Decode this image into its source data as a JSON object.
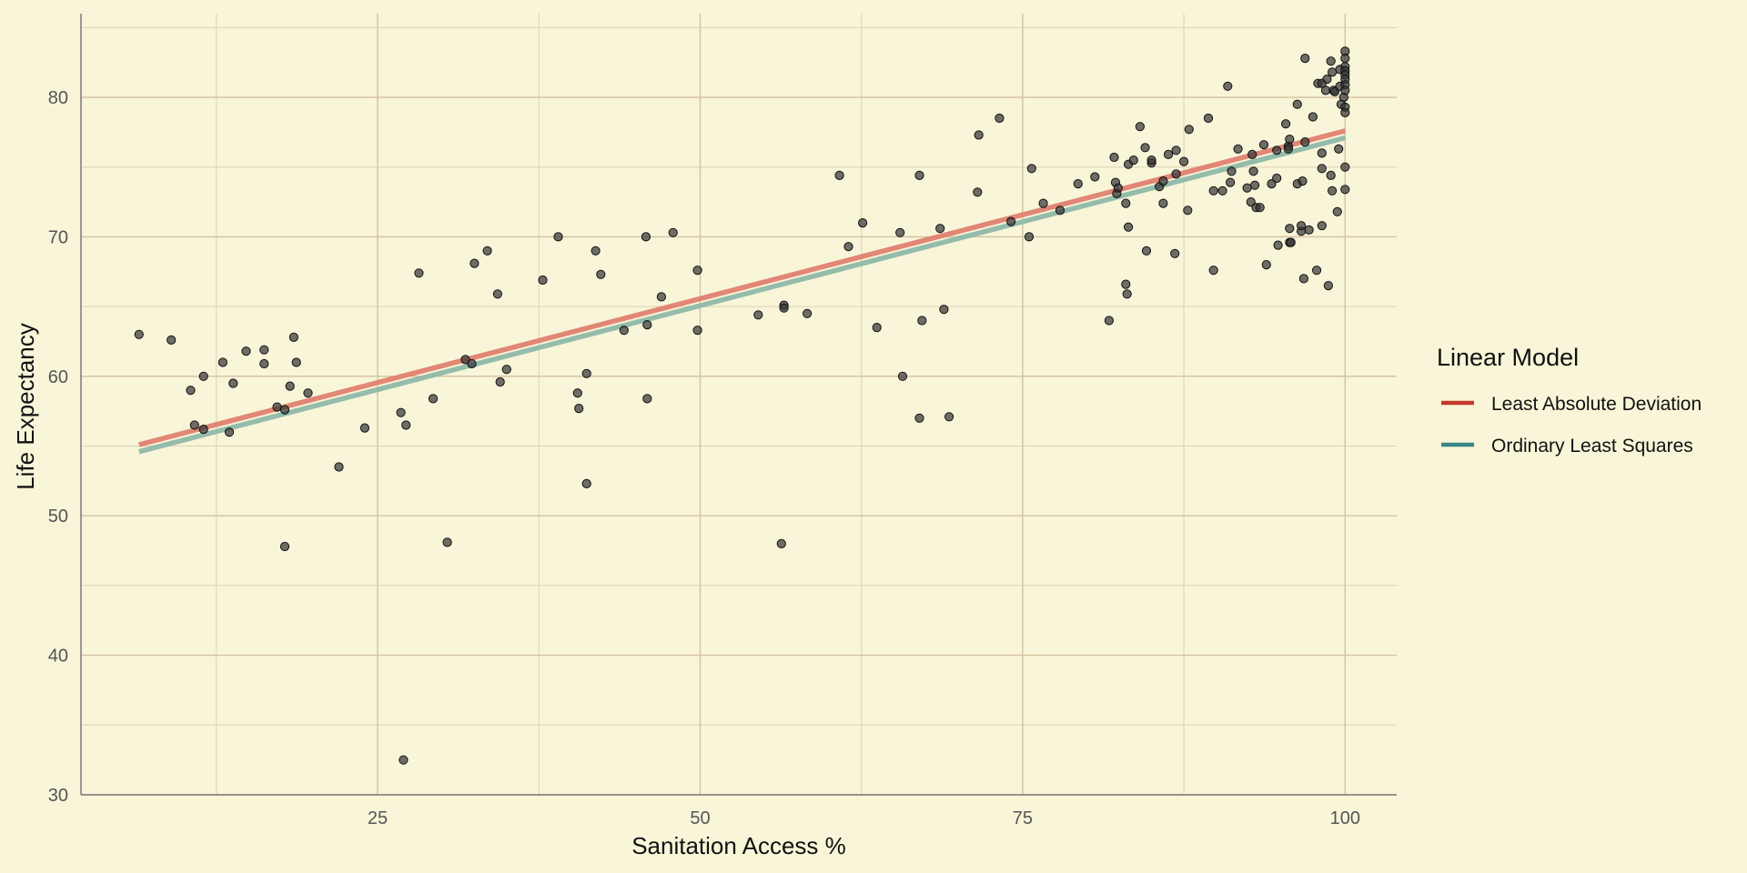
{
  "chart_data": {
    "type": "scatter",
    "xlabel": "Sanitation Access %",
    "ylabel": "Life Expectancy",
    "xlim": [
      2,
      104
    ],
    "ylim": [
      30,
      86
    ],
    "x_ticks": [
      25,
      50,
      75,
      100
    ],
    "y_ticks": [
      30,
      40,
      50,
      60,
      70,
      80
    ],
    "grid": true,
    "legend": {
      "title": "Linear Model",
      "position": "right",
      "entries": [
        {
          "label": "Least Absolute Deviation",
          "color": "#c0392b"
        },
        {
          "label": "Ordinary Least Squares",
          "color": "#3a8585"
        }
      ]
    },
    "fit_lines": [
      {
        "name": "Least Absolute Deviation",
        "color": "#e08070",
        "x": [
          6.5,
          100
        ],
        "y": [
          55.1,
          77.6
        ]
      },
      {
        "name": "Ordinary Least Squares",
        "color": "#8fb8a8",
        "x": [
          6.5,
          100
        ],
        "y": [
          54.6,
          77.1
        ]
      }
    ],
    "point_color": "#333333",
    "points": [
      [
        6.5,
        63.0
      ],
      [
        9,
        62.6
      ],
      [
        10.5,
        59.0
      ],
      [
        10.8,
        56.5
      ],
      [
        11.5,
        60.0
      ],
      [
        11.5,
        56.2
      ],
      [
        13,
        61.0
      ],
      [
        13.5,
        56.0
      ],
      [
        13.8,
        59.5
      ],
      [
        14.8,
        61.8
      ],
      [
        16.2,
        61.9
      ],
      [
        16.2,
        60.9
      ],
      [
        17.2,
        57.8
      ],
      [
        17.8,
        47.8
      ],
      [
        17.8,
        57.6
      ],
      [
        18.2,
        59.3
      ],
      [
        18.5,
        62.8
      ],
      [
        18.7,
        61.0
      ],
      [
        19.6,
        58.8
      ],
      [
        22,
        53.5
      ],
      [
        24,
        56.3
      ],
      [
        26.8,
        57.4
      ],
      [
        27,
        32.5
      ],
      [
        27.2,
        56.5
      ],
      [
        28.2,
        67.4
      ],
      [
        29.3,
        58.4
      ],
      [
        30.4,
        48.1
      ],
      [
        31.8,
        61.2
      ],
      [
        32.3,
        60.9
      ],
      [
        32.5,
        68.1
      ],
      [
        33.5,
        69.0
      ],
      [
        34.3,
        65.9
      ],
      [
        34.5,
        59.6
      ],
      [
        35,
        60.5
      ],
      [
        37.8,
        66.9
      ],
      [
        39,
        70.0
      ],
      [
        40.5,
        58.8
      ],
      [
        40.6,
        57.7
      ],
      [
        41.2,
        52.3
      ],
      [
        41.2,
        60.2
      ],
      [
        41.9,
        69.0
      ],
      [
        42.3,
        67.3
      ],
      [
        44.1,
        63.3
      ],
      [
        45.8,
        70.0
      ],
      [
        45.9,
        63.7
      ],
      [
        45.9,
        58.4
      ],
      [
        47,
        65.7
      ],
      [
        47.9,
        70.3
      ],
      [
        49.8,
        67.6
      ],
      [
        49.8,
        63.3
      ],
      [
        54.5,
        64.4
      ],
      [
        56.3,
        48.0
      ],
      [
        56.5,
        65.1
      ],
      [
        56.5,
        64.9
      ],
      [
        58.3,
        64.5
      ],
      [
        60.8,
        74.4
      ],
      [
        61.5,
        69.3
      ],
      [
        62.6,
        71.0
      ],
      [
        63.7,
        63.5
      ],
      [
        65.5,
        70.3
      ],
      [
        65.7,
        60.0
      ],
      [
        67,
        74.4
      ],
      [
        67,
        57.0
      ],
      [
        67.2,
        64.0
      ],
      [
        68.6,
        70.6
      ],
      [
        68.9,
        64.8
      ],
      [
        69.3,
        57.1
      ],
      [
        71.5,
        73.2
      ],
      [
        71.6,
        77.3
      ],
      [
        73.2,
        78.5
      ],
      [
        74.1,
        71.1
      ],
      [
        75.5,
        70.0
      ],
      [
        75.7,
        74.9
      ],
      [
        76.6,
        72.4
      ],
      [
        77.9,
        71.9
      ],
      [
        79.3,
        73.8
      ],
      [
        80.6,
        74.3
      ],
      [
        81.7,
        64.0
      ],
      [
        82.1,
        75.7
      ],
      [
        82.2,
        73.9
      ],
      [
        82.3,
        73.1
      ],
      [
        82.4,
        73.5
      ],
      [
        83,
        66.6
      ],
      [
        83,
        72.4
      ],
      [
        83.1,
        65.9
      ],
      [
        83.2,
        70.7
      ],
      [
        83.2,
        75.2
      ],
      [
        83.6,
        75.5
      ],
      [
        84.1,
        77.9
      ],
      [
        84.5,
        76.4
      ],
      [
        84.6,
        69.0
      ],
      [
        85,
        75.3
      ],
      [
        85,
        75.5
      ],
      [
        85.6,
        73.6
      ],
      [
        85.9,
        74.0
      ],
      [
        85.9,
        72.4
      ],
      [
        86.3,
        75.9
      ],
      [
        86.8,
        68.8
      ],
      [
        86.9,
        74.5
      ],
      [
        86.9,
        76.2
      ],
      [
        87.5,
        75.4
      ],
      [
        87.8,
        71.9
      ],
      [
        87.9,
        77.7
      ],
      [
        89.4,
        78.5
      ],
      [
        89.8,
        67.6
      ],
      [
        89.8,
        73.3
      ],
      [
        90.5,
        73.3
      ],
      [
        90.9,
        80.8
      ],
      [
        91.1,
        73.9
      ],
      [
        91.2,
        74.7
      ],
      [
        91.7,
        76.3
      ],
      [
        92.4,
        73.5
      ],
      [
        92.7,
        72.5
      ],
      [
        92.8,
        75.9
      ],
      [
        92.9,
        74.7
      ],
      [
        93,
        73.7
      ],
      [
        93.1,
        72.1
      ],
      [
        93.4,
        72.1
      ],
      [
        93.7,
        76.6
      ],
      [
        93.9,
        68.0
      ],
      [
        94.3,
        73.8
      ],
      [
        94.7,
        76.2
      ],
      [
        94.7,
        74.2
      ],
      [
        94.8,
        69.4
      ],
      [
        95.4,
        78.1
      ],
      [
        95.6,
        76.5
      ],
      [
        95.6,
        76.3
      ],
      [
        95.7,
        77.0
      ],
      [
        95.7,
        69.6
      ],
      [
        95.7,
        70.6
      ],
      [
        95.8,
        69.6
      ],
      [
        96.3,
        79.5
      ],
      [
        96.3,
        73.8
      ],
      [
        96.6,
        70.4
      ],
      [
        96.6,
        70.8
      ],
      [
        96.7,
        74.0
      ],
      [
        96.8,
        67.0
      ],
      [
        96.9,
        76.8
      ],
      [
        96.9,
        82.8
      ],
      [
        97.2,
        70.5
      ],
      [
        97.5,
        78.6
      ],
      [
        97.8,
        67.6
      ],
      [
        97.9,
        81.0
      ],
      [
        98.2,
        81.0
      ],
      [
        98.2,
        76.0
      ],
      [
        98.2,
        74.9
      ],
      [
        98.2,
        70.8
      ],
      [
        98.5,
        80.5
      ],
      [
        98.6,
        81.3
      ],
      [
        98.7,
        66.5
      ],
      [
        98.9,
        74.4
      ],
      [
        98.9,
        82.6
      ],
      [
        99,
        73.3
      ],
      [
        99,
        81.8
      ],
      [
        99.1,
        80.5
      ],
      [
        99.2,
        80.4
      ],
      [
        99.4,
        71.8
      ],
      [
        99.5,
        76.3
      ],
      [
        99.6,
        82.0
      ],
      [
        99.6,
        80.8
      ],
      [
        99.7,
        79.5
      ],
      [
        99.9,
        80.0
      ],
      [
        100,
        83.3
      ],
      [
        100,
        82.8
      ],
      [
        100,
        82.2
      ],
      [
        100,
        81.9
      ],
      [
        100,
        81.6
      ],
      [
        100,
        81.3
      ],
      [
        100,
        80.9
      ],
      [
        100,
        80.5
      ],
      [
        100,
        79.3
      ],
      [
        100,
        78.9
      ],
      [
        100,
        75.0
      ],
      [
        100,
        73.4
      ]
    ]
  }
}
